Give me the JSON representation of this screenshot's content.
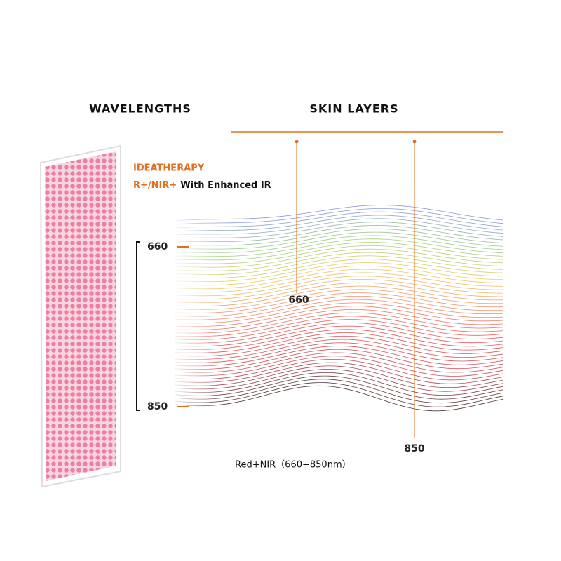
{
  "headings": {
    "wavelengths": "WAVELENGTHS",
    "skin_layers": "SKIN LAYERS"
  },
  "brand": {
    "name": "IDEATHERAPY",
    "highlight": "R+/NIR+",
    "tagline": "With Enhanced IR"
  },
  "scale": {
    "top": "660",
    "bottom": "850"
  },
  "skin": {
    "marker_top": "660",
    "marker_bottom": "850"
  },
  "caption": "Red+NIR（660+850nm）"
}
